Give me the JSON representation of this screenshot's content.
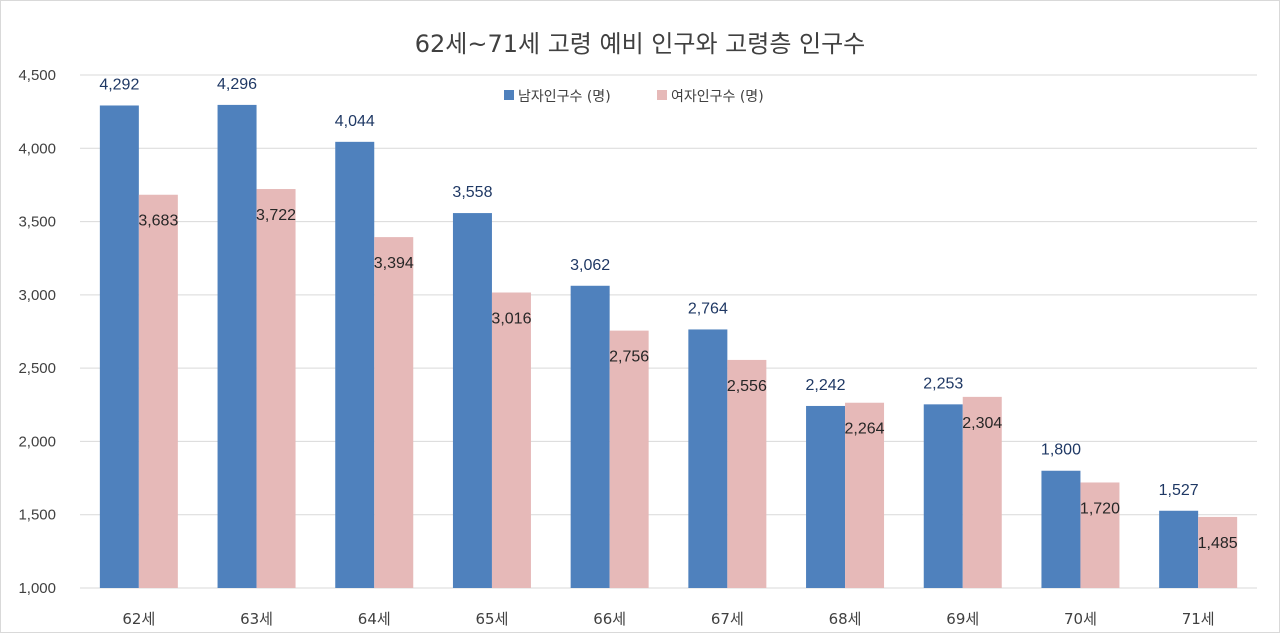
{
  "chart_data": {
    "type": "bar",
    "title": "62세~71세 고령 예비 인구와 고령층 인구수",
    "categories": [
      "62세",
      "63세",
      "64세",
      "65세",
      "66세",
      "67세",
      "68세",
      "69세",
      "70세",
      "71세"
    ],
    "series": [
      {
        "name": "남자인구수 (명)",
        "color": "#4f81bd",
        "values": [
          4292,
          4296,
          4044,
          3558,
          3062,
          2764,
          2242,
          2253,
          1800,
          1527
        ]
      },
      {
        "name": "여자인구수 (명)",
        "color": "#e6b9b8",
        "values": [
          3683,
          3722,
          3394,
          3016,
          2756,
          2556,
          2264,
          2304,
          1720,
          1485
        ]
      }
    ],
    "data_labels": {
      "male": [
        "4,292",
        "4,296",
        "4,044",
        "3,558",
        "3,062",
        "2,764",
        "2,242",
        "2,253",
        "1,800",
        "1,527"
      ],
      "female": [
        "3,683",
        "3,722",
        "3,394",
        "3,016",
        "2,756",
        "2,556",
        "2,264",
        "2,304",
        "1,720",
        "1,485"
      ]
    },
    "yticks": [
      "1,000",
      "1,500",
      "2,000",
      "2,500",
      "3,000",
      "3,500",
      "4,000",
      "4,500"
    ],
    "ylim": [
      1000,
      4500
    ],
    "grid": true,
    "legend_position": "top-center"
  }
}
